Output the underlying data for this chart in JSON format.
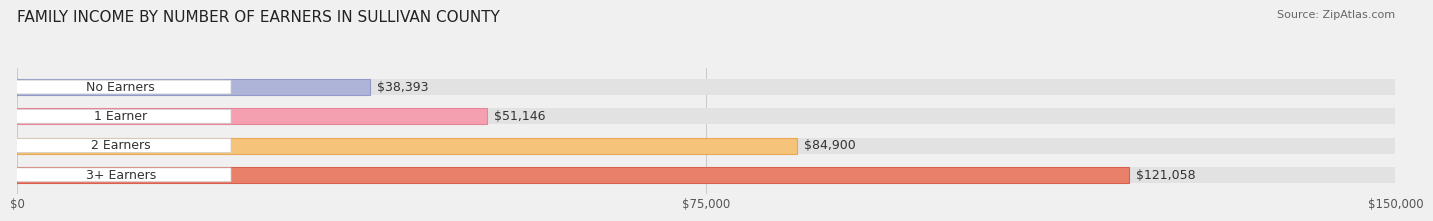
{
  "title": "FAMILY INCOME BY NUMBER OF EARNERS IN SULLIVAN COUNTY",
  "source": "Source: ZipAtlas.com",
  "categories": [
    "No Earners",
    "1 Earner",
    "2 Earners",
    "3+ Earners"
  ],
  "values": [
    38393,
    51146,
    84900,
    121058
  ],
  "value_labels": [
    "$38,393",
    "$51,146",
    "$84,900",
    "$121,058"
  ],
  "bar_colors": [
    "#aeb4d8",
    "#f4a0b0",
    "#f5c47a",
    "#e8806a"
  ],
  "bar_edge_colors": [
    "#9099c8",
    "#e8849a",
    "#e8a855",
    "#d96050"
  ],
  "background_color": "#f0f0f0",
  "bar_bg_color": "#e8e8e8",
  "xlim": [
    0,
    150000
  ],
  "xticks": [
    0,
    75000,
    150000
  ],
  "xtick_labels": [
    "$0",
    "$75,000",
    "$150,000"
  ],
  "title_fontsize": 11,
  "label_fontsize": 9,
  "value_fontsize": 9,
  "source_fontsize": 8,
  "bar_height": 0.55,
  "bar_gap": 0.08
}
